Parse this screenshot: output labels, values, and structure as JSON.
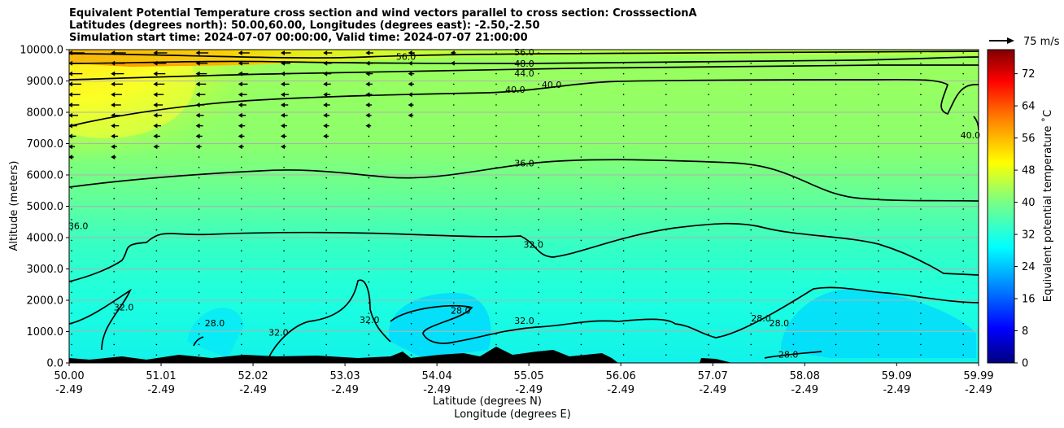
{
  "chart_data": {
    "type": "heatmap",
    "title_lines": [
      "Equivalent Potential Temperature cross section and wind vectors parallel to cross section: CrosssectionA",
      "Latitudes (degrees north): 50.00,60.00, Longitudes (degrees east): -2.50,-2.50",
      "Simulation start time: 2024-07-07 00:00:00, Valid time: 2024-07-07 21:00:00"
    ],
    "ylabel": "Altitude (meters)",
    "xlabel_lat": "Latitude (degrees N)",
    "xlabel_lon": "Longitude (degrees E)",
    "ylim": [
      0,
      10000
    ],
    "y_ticks": [
      "0.0",
      "1000.0",
      "2000.0",
      "3000.0",
      "4000.0",
      "5000.0",
      "6000.0",
      "7000.0",
      "8000.0",
      "9000.0",
      "10000.0"
    ],
    "x_ticks_lat": [
      "50.00",
      "51.01",
      "52.02",
      "53.03",
      "54.04",
      "55.05",
      "56.06",
      "57.07",
      "58.08",
      "59.09",
      "59.99"
    ],
    "x_ticks_lon": [
      "-2.49",
      "-2.49",
      "-2.49",
      "-2.49",
      "-2.49",
      "-2.49",
      "-2.49",
      "-2.49",
      "-2.49",
      "-2.49",
      "-2.49"
    ],
    "x_range_lat": [
      50.0,
      59.99
    ],
    "colorbar": {
      "label": "Equivalent potential temperature ˚C",
      "ticks": [
        "0",
        "8",
        "16",
        "24",
        "32",
        "40",
        "48",
        "56",
        "64",
        "72"
      ],
      "range": [
        0,
        78
      ]
    },
    "quiver_key": "75 m/s",
    "contour_levels": [
      28,
      32,
      36,
      40,
      44,
      48,
      56
    ],
    "contour_labels": [
      {
        "text": "56.0",
        "lat": 53.7,
        "alt": 9700
      },
      {
        "text": "56.0",
        "lat": 55.0,
        "alt": 9850
      },
      {
        "text": "48.0",
        "lat": 55.0,
        "alt": 9480
      },
      {
        "text": "44.0",
        "lat": 55.0,
        "alt": 9170
      },
      {
        "text": "40.0",
        "lat": 54.9,
        "alt": 8650
      },
      {
        "text": "40.0",
        "lat": 55.3,
        "alt": 8800
      },
      {
        "text": "40.0",
        "lat": 59.9,
        "alt": 7200
      },
      {
        "text": "36.0",
        "lat": 55.0,
        "alt": 6300
      },
      {
        "text": "36.0",
        "lat": 50.1,
        "alt": 4300
      },
      {
        "text": "32.0",
        "lat": 55.1,
        "alt": 3700
      },
      {
        "text": "32.0",
        "lat": 50.6,
        "alt": 1700
      },
      {
        "text": "32.0",
        "lat": 55.0,
        "alt": 1270
      },
      {
        "text": "32.0",
        "lat": 52.3,
        "alt": 900
      },
      {
        "text": "32.0",
        "lat": 53.3,
        "alt": 1300
      },
      {
        "text": "28.0",
        "lat": 51.6,
        "alt": 1200
      },
      {
        "text": "28.0",
        "lat": 54.3,
        "alt": 1600
      },
      {
        "text": "28.0",
        "lat": 57.6,
        "alt": 1350
      },
      {
        "text": "28.0",
        "lat": 57.8,
        "alt": 1200
      },
      {
        "text": "28.0",
        "lat": 57.9,
        "alt": 200
      }
    ]
  }
}
